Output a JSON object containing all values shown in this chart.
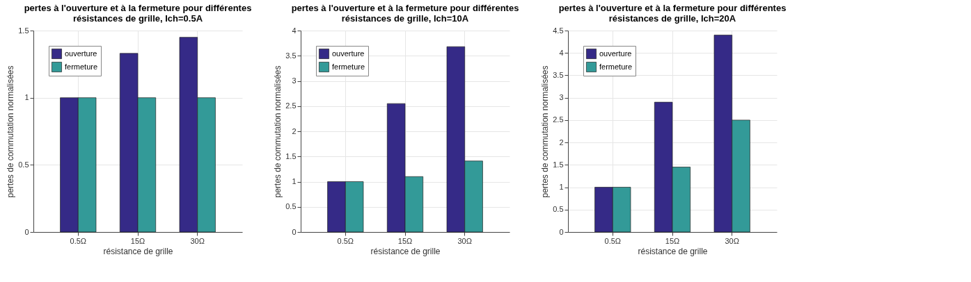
{
  "chart_data": [
    {
      "type": "bar",
      "title": "pertes à l'ouverture et à la fermeture pour différentes\nrésistances de grille, Ich=0.5A",
      "xlabel": "résistance de grille",
      "ylabel": "pertes de commutation normalisées",
      "categories": [
        "0.5Ω",
        "15Ω",
        "30Ω"
      ],
      "ylim": [
        0,
        1.5
      ],
      "yticks": [
        0,
        0.5,
        1,
        1.5
      ],
      "grid": true,
      "legend": "top left",
      "series": [
        {
          "name": "ouverture",
          "color": "#352a87",
          "values": [
            1,
            1.33,
            1.45
          ]
        },
        {
          "name": "fermeture",
          "color": "#339a98",
          "values": [
            1,
            1,
            1
          ]
        }
      ]
    },
    {
      "type": "bar",
      "title": "pertes à l'ouverture et à la fermeture pour différentes\nrésistances de grille, Ich=10A",
      "xlabel": "résistance de grille",
      "ylabel": "pertes de commutation normalisées",
      "categories": [
        "0.5Ω",
        "15Ω",
        "30Ω"
      ],
      "ylim": [
        0,
        4
      ],
      "yticks": [
        0,
        0.5,
        1,
        1.5,
        2,
        2.5,
        3,
        3.5,
        4
      ],
      "grid": true,
      "legend": "top left",
      "series": [
        {
          "name": "ouverture",
          "color": "#352a87",
          "values": [
            1,
            2.55,
            3.68
          ]
        },
        {
          "name": "fermeture",
          "color": "#339a98",
          "values": [
            1,
            1.1,
            1.41
          ]
        }
      ]
    },
    {
      "type": "bar",
      "title": "pertes à l'ouverture et à la fermeture pour différentes\nrésistances de grille, Ich=20A",
      "xlabel": "résistance de grille",
      "ylabel": "pertes de commutation normalisées",
      "categories": [
        "0.5Ω",
        "15Ω",
        "30Ω"
      ],
      "ylim": [
        0,
        4.5
      ],
      "yticks": [
        0,
        0.5,
        1,
        1.5,
        2,
        2.5,
        3,
        3.5,
        4,
        4.5
      ],
      "grid": true,
      "legend": "top left",
      "series": [
        {
          "name": "ouverture",
          "color": "#352a87",
          "values": [
            1,
            2.9,
            4.4
          ]
        },
        {
          "name": "fermeture",
          "color": "#339a98",
          "values": [
            1,
            1.45,
            2.5
          ]
        }
      ]
    }
  ]
}
